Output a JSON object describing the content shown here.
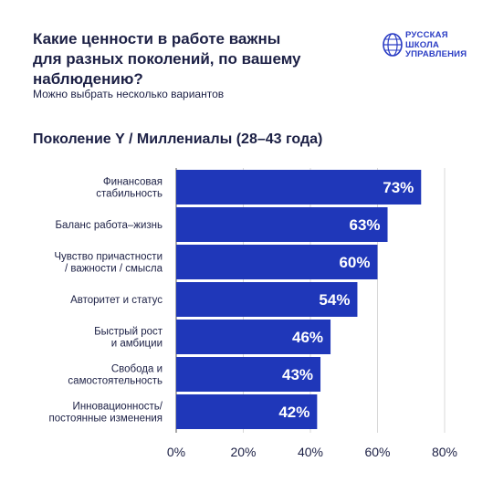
{
  "header": {
    "title_lines": [
      "Какие ценности в работе важны",
      "для разных поколений, по вашему",
      "наблюдению?"
    ],
    "subtitle": "Можно выбрать несколько вариантов"
  },
  "logo": {
    "lines": [
      "РУССКАЯ",
      "ШКОЛА",
      "УПРАВЛЕНИЯ"
    ],
    "icon": "globe-logo-icon"
  },
  "colors": {
    "bar": "#1f37b9",
    "grid": "#d8d8d8",
    "logo": "#2a3cc4"
  },
  "chart_data": {
    "type": "bar",
    "orientation": "horizontal",
    "title": "Поколение Y / Миллениалы (28–43 года)",
    "categories": [
      [
        "Финансовая",
        "стабильность"
      ],
      [
        "Баланс работа–жизнь"
      ],
      [
        "Чувство причастности",
        "/ важности / смысла"
      ],
      [
        "Авторитет и статус"
      ],
      [
        "Быстрый рост",
        "и амбиции"
      ],
      [
        "Свобода и",
        "самостоятельность"
      ],
      [
        "Инновационность/",
        "постоянные изменения"
      ]
    ],
    "values": [
      73,
      63,
      60,
      54,
      46,
      43,
      42
    ],
    "value_labels": [
      "73%",
      "63%",
      "60%",
      "54%",
      "46%",
      "43%",
      "42%"
    ],
    "xlim": [
      0,
      80
    ],
    "ticks": [
      0,
      20,
      40,
      60,
      80
    ],
    "tick_labels": [
      "0%",
      "20%",
      "40%",
      "60%",
      "80%"
    ],
    "grid": true
  }
}
